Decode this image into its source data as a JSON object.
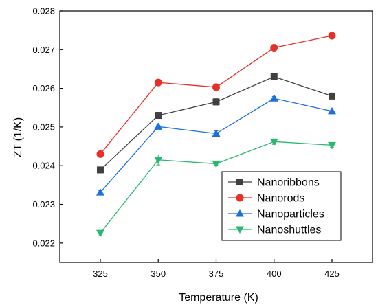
{
  "chart_data": {
    "type": "line",
    "title": "",
    "xlabel": "Temperature (K)",
    "ylabel": "ZT (1/K)",
    "x": [
      325,
      350,
      375,
      400,
      425
    ],
    "x_ticks": [
      "325",
      "350",
      "375",
      "400",
      "425"
    ],
    "xlim": [
      307.5,
      442.5
    ],
    "ylim": [
      0.0215,
      0.028
    ],
    "y_ticks": [
      "0.022",
      "0.023",
      "0.024",
      "0.025",
      "0.026",
      "0.027",
      "0.028"
    ],
    "grid": false,
    "legend_position": "lower-right",
    "series": [
      {
        "name": "Nanoribbons",
        "color": "#404040",
        "marker": "square",
        "values": [
          0.02389,
          0.0253,
          0.02565,
          0.0263,
          0.0258
        ],
        "errors": [
          8e-05,
          4e-05,
          8e-05,
          5e-05,
          5e-05
        ]
      },
      {
        "name": "Nanorods",
        "color": "#e8302a",
        "marker": "circle",
        "values": [
          0.0243,
          0.02615,
          0.02603,
          0.02705,
          0.02736
        ],
        "errors": [
          5e-05,
          8e-05,
          5e-05,
          5e-05,
          6e-05
        ]
      },
      {
        "name": "Nanoparticles",
        "color": "#1b6fdc",
        "marker": "triangle-up",
        "values": [
          0.02331,
          0.02501,
          0.02483,
          0.02574,
          0.02541
        ],
        "errors": [
          5e-05,
          4e-05,
          7e-05,
          5e-05,
          6e-05
        ]
      },
      {
        "name": "Nanoshuttles",
        "color": "#2bb673",
        "marker": "triangle-down",
        "values": [
          0.02226,
          0.02415,
          0.02405,
          0.02462,
          0.02453
        ],
        "errors": [
          7e-05,
          0.00013,
          4e-05,
          7e-05,
          6e-05
        ]
      }
    ]
  }
}
